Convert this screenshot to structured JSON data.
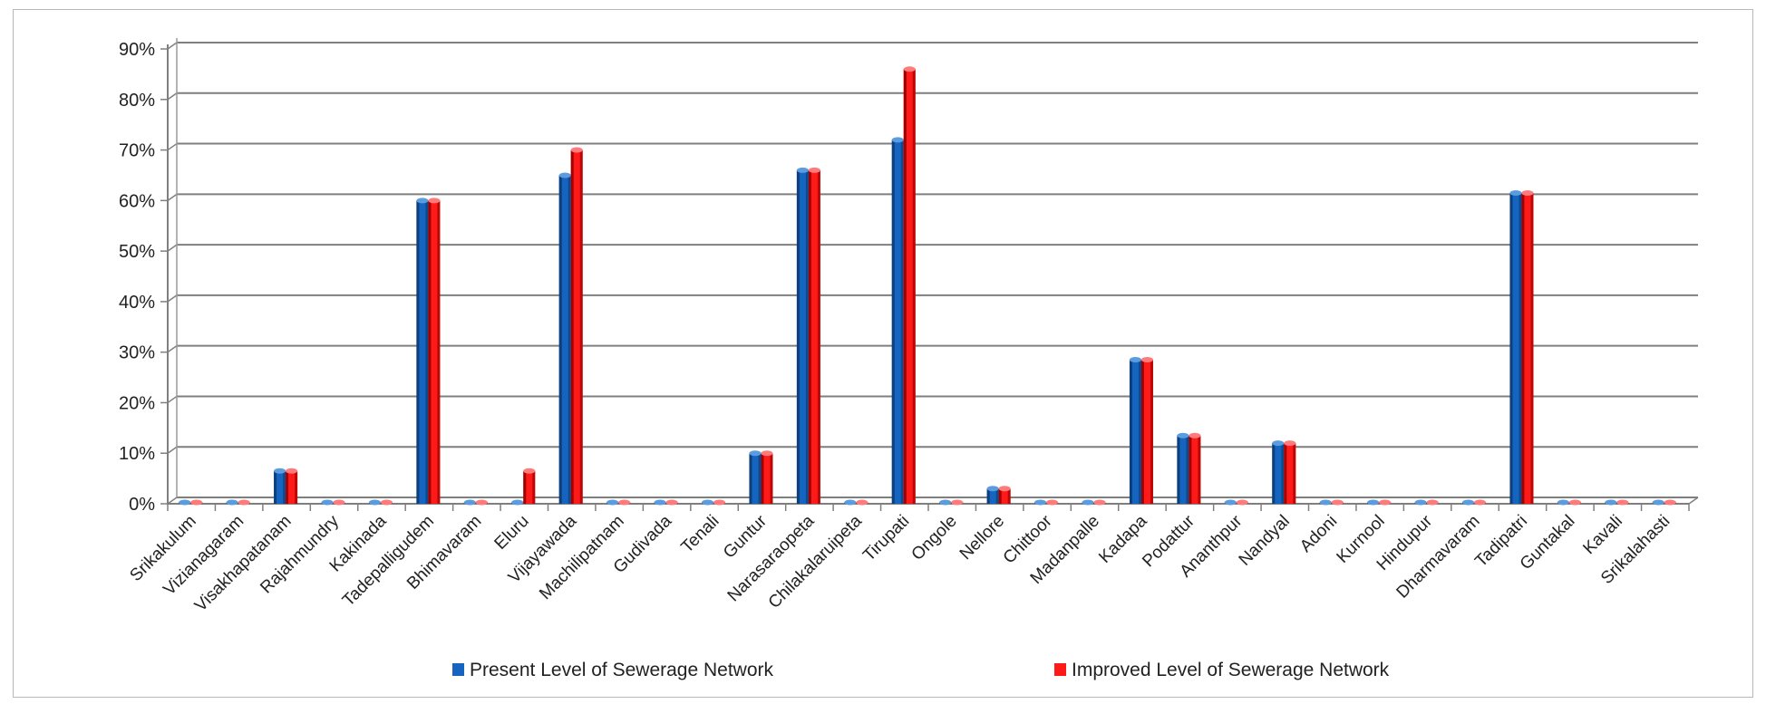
{
  "chart_data": {
    "type": "bar",
    "title": "",
    "xlabel": "",
    "ylabel": "",
    "ylim": [
      0,
      0.9
    ],
    "y_tick_values": [
      0,
      0.1,
      0.2,
      0.3,
      0.4,
      0.5,
      0.6,
      0.7,
      0.8,
      0.9
    ],
    "y_tick_labels": [
      "0%",
      "10%",
      "20%",
      "30%",
      "40%",
      "50%",
      "60%",
      "70%",
      "80%",
      "90%"
    ],
    "grid": true,
    "legend_position": "bottom",
    "categories": [
      "Srikakulum",
      "Vizianagaram",
      "Visakhapatanam",
      "Rajahmundry",
      "Kakinada",
      "Tadepalligudem",
      "Bhimavaram",
      "Eluru",
      "Vijayawada",
      "Machilipatnam",
      "Gudivada",
      "Tenali",
      "Guntur",
      "Narasaraopeta",
      "Chilakalaruipeta",
      "Tirupati",
      "Ongole",
      "Nellore",
      "Chittoor",
      "Madanpalle",
      "Kadapa",
      "Podattur",
      "Ananthpur",
      "Nandyal",
      "Adoni",
      "Kurnool",
      "Hindupur",
      "Dharmavaram",
      "Tadipatri",
      "Guntakal",
      "Kavali",
      "Srikalahasti"
    ],
    "series": [
      {
        "name": "Present Level of Sewerage Network",
        "color": "#1565c0",
        "values": [
          0,
          0,
          0.065,
          0,
          0,
          0.6,
          0,
          0,
          0.65,
          0,
          0,
          0,
          0.1,
          0.66,
          0,
          0.72,
          0,
          0.03,
          0,
          0,
          0.285,
          0.135,
          0,
          0.12,
          0,
          0,
          0,
          0,
          0.615,
          0,
          0,
          0
        ]
      },
      {
        "name": "Improved Level of Sewerage Network",
        "color": "#ff1a1a",
        "values": [
          0,
          0,
          0.065,
          0,
          0,
          0.6,
          0,
          0.065,
          0.7,
          0,
          0,
          0,
          0.1,
          0.66,
          0,
          0.86,
          0,
          0.03,
          0,
          0,
          0.285,
          0.135,
          0,
          0.12,
          0,
          0,
          0,
          0,
          0.615,
          0,
          0,
          0
        ]
      }
    ]
  }
}
